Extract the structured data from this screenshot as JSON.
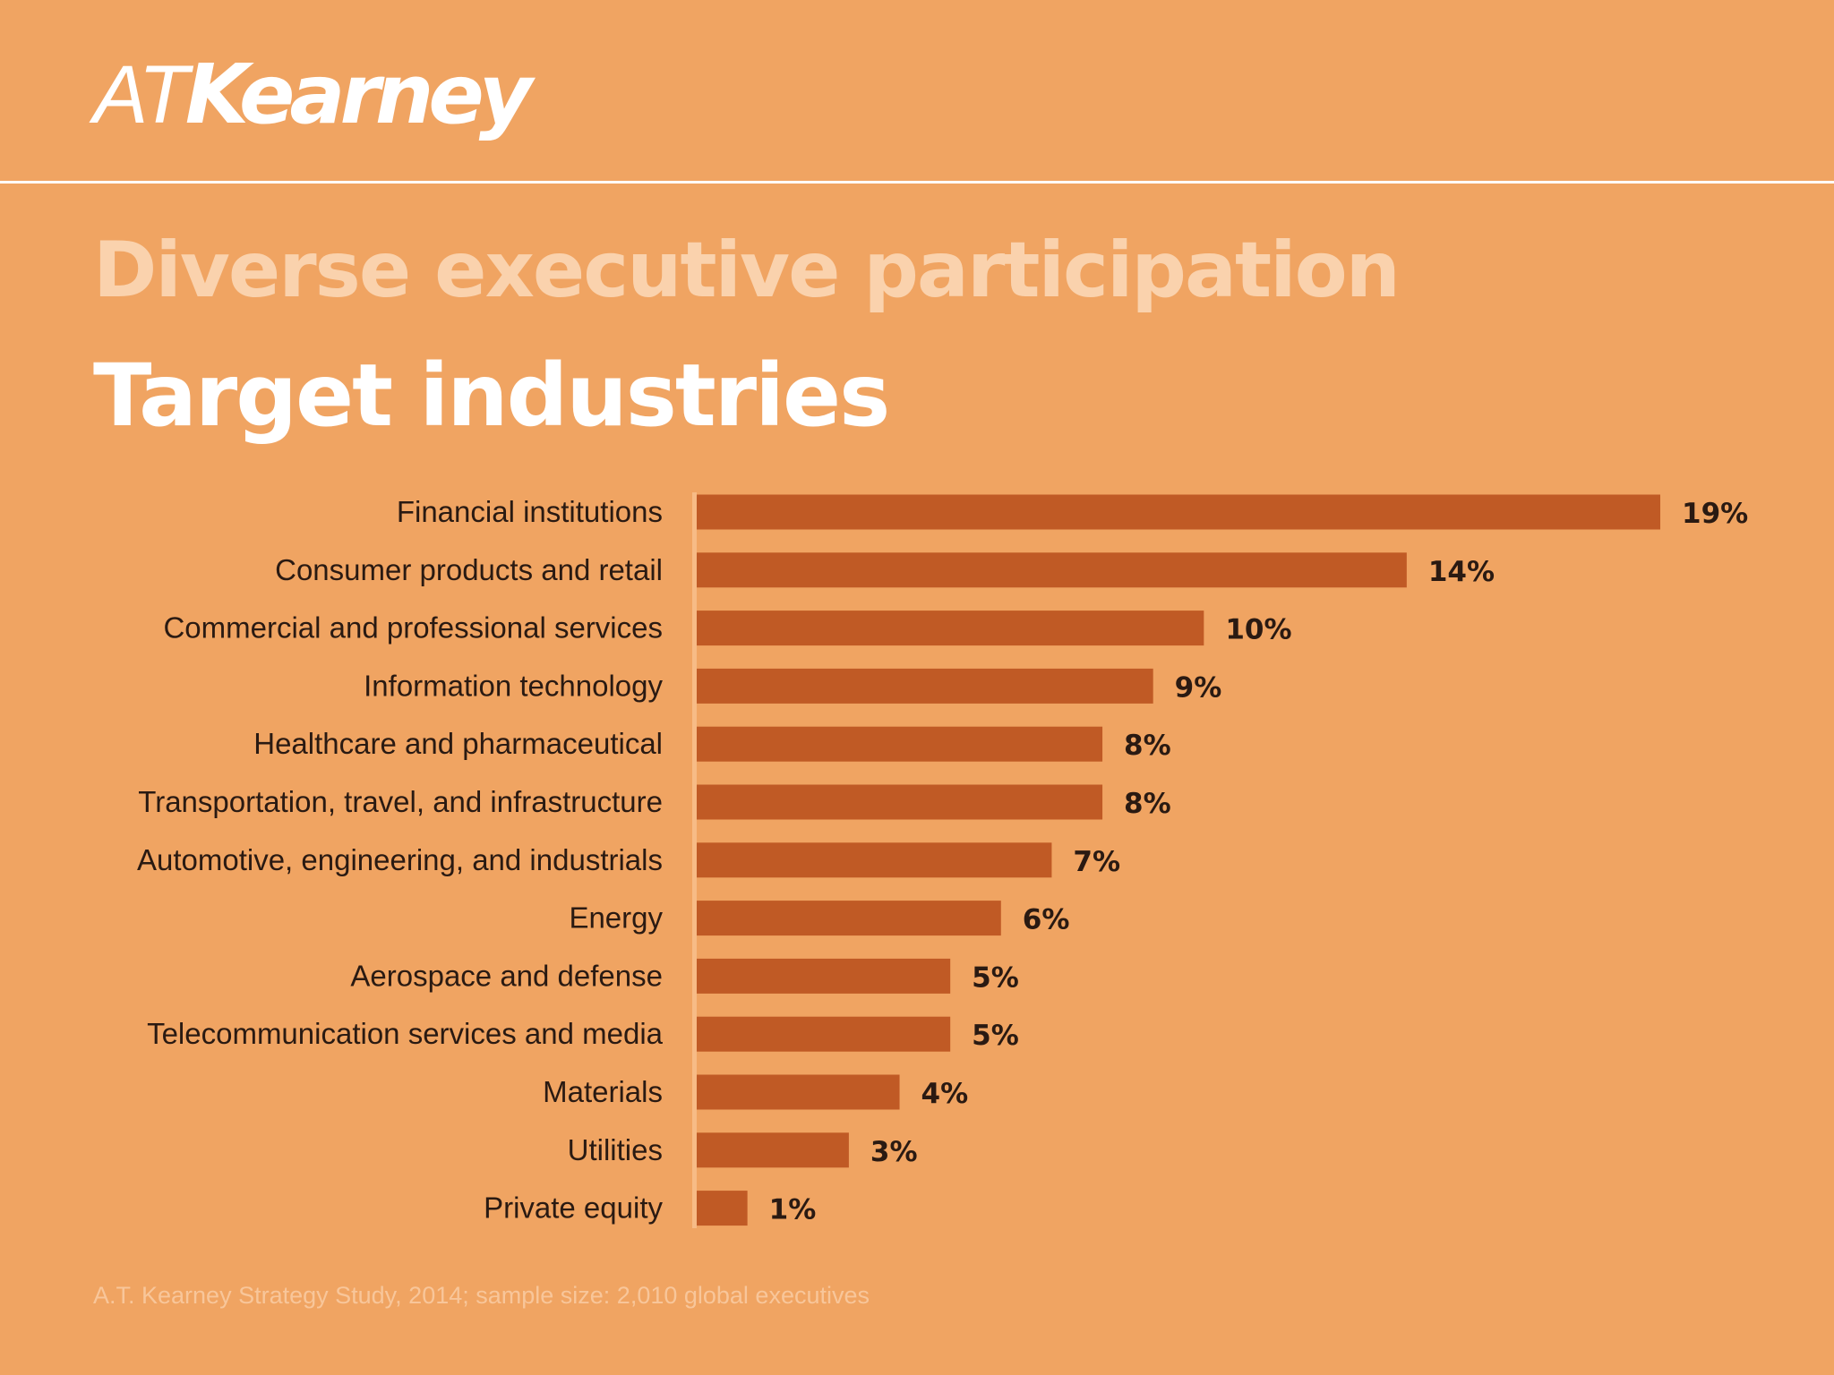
{
  "logo": {
    "light": "AT",
    "bold": "Kearney"
  },
  "subtitle": "Diverse executive participation",
  "title": "Target industries",
  "source": "A.T. Kearney Strategy Study, 2014; sample size: 2,010 global executives",
  "colors": {
    "background": "#F0A462",
    "bar": "#C05A25",
    "axis": "#F7BB86",
    "label_text": "#2A1A12",
    "value_text": "#2A1A12",
    "subtitle": "#FAD2AD",
    "title": "#FFFFFF"
  },
  "chart_data": {
    "type": "bar",
    "orientation": "horizontal",
    "title": "Target industries",
    "xlim": [
      0,
      19
    ],
    "categories": [
      "Financial institutions",
      "Consumer products and retail",
      "Commercial and professional services",
      "Information technology",
      "Healthcare and pharmaceutical",
      "Transportation, travel, and infrastructure",
      "Automotive, engineering, and industrials",
      "Energy",
      "Aerospace and defense",
      "Telecommunication services and media",
      "Materials",
      "Utilities",
      "Private equity"
    ],
    "values": [
      19,
      14,
      10,
      9,
      8,
      8,
      7,
      6,
      5,
      5,
      4,
      3,
      1
    ],
    "value_labels": [
      "19%",
      "14%",
      "10%",
      "9%",
      "8%",
      "8%",
      "7%",
      "6%",
      "5%",
      "5%",
      "4%",
      "3%",
      "1%"
    ],
    "grid": false,
    "legend": "none"
  }
}
